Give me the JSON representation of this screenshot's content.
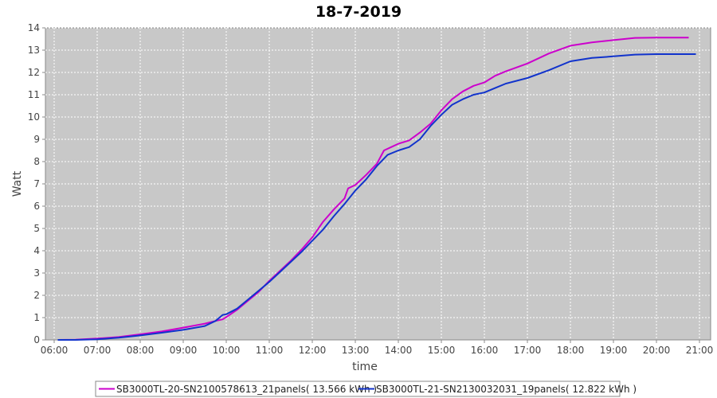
{
  "chart_data": {
    "type": "line",
    "title": "18-7-2019",
    "xlabel": "time",
    "ylabel": "Watt",
    "xlim": [
      "06:00",
      "21:00"
    ],
    "ylim": [
      0,
      14
    ],
    "x_ticks": [
      "06:00",
      "07:00",
      "08:00",
      "09:00",
      "10:00",
      "11:00",
      "12:00",
      "13:00",
      "14:00",
      "15:00",
      "16:00",
      "17:00",
      "18:00",
      "19:00",
      "20:00",
      "21:00"
    ],
    "y_ticks": [
      "0",
      "1",
      "2",
      "3",
      "4",
      "5",
      "6",
      "7",
      "8",
      "9",
      "10",
      "11",
      "12",
      "13",
      "14"
    ],
    "grid": true,
    "legend_position": "bottom",
    "series": [
      {
        "name": "SB3000TL-20-SN2100578613_21panels( 13.566 kWh )",
        "color": "#cc00cc",
        "points": [
          [
            "06:05",
            0.0
          ],
          [
            "06:30",
            0.01
          ],
          [
            "07:00",
            0.06
          ],
          [
            "07:30",
            0.13
          ],
          [
            "08:00",
            0.25
          ],
          [
            "08:30",
            0.38
          ],
          [
            "09:00",
            0.55
          ],
          [
            "09:30",
            0.73
          ],
          [
            "09:45",
            0.85
          ],
          [
            "09:55",
            0.92
          ],
          [
            "10:00",
            1.02
          ],
          [
            "10:15",
            1.35
          ],
          [
            "10:30",
            1.75
          ],
          [
            "10:45",
            2.15
          ],
          [
            "11:00",
            2.65
          ],
          [
            "11:15",
            3.1
          ],
          [
            "11:30",
            3.55
          ],
          [
            "11:45",
            4.05
          ],
          [
            "12:00",
            4.6
          ],
          [
            "12:15",
            5.3
          ],
          [
            "12:30",
            5.85
          ],
          [
            "12:45",
            6.35
          ],
          [
            "12:50",
            6.8
          ],
          [
            "13:00",
            6.95
          ],
          [
            "13:15",
            7.4
          ],
          [
            "13:30",
            7.9
          ],
          [
            "13:40",
            8.5
          ],
          [
            "13:50",
            8.65
          ],
          [
            "14:00",
            8.8
          ],
          [
            "14:15",
            8.95
          ],
          [
            "14:30",
            9.3
          ],
          [
            "14:45",
            9.7
          ],
          [
            "15:00",
            10.3
          ],
          [
            "15:15",
            10.8
          ],
          [
            "15:30",
            11.15
          ],
          [
            "15:45",
            11.4
          ],
          [
            "16:00",
            11.55
          ],
          [
            "16:15",
            11.85
          ],
          [
            "16:30",
            12.05
          ],
          [
            "17:00",
            12.4
          ],
          [
            "17:30",
            12.85
          ],
          [
            "18:00",
            13.2
          ],
          [
            "18:30",
            13.35
          ],
          [
            "19:00",
            13.45
          ],
          [
            "19:30",
            13.55
          ],
          [
            "20:00",
            13.56
          ],
          [
            "20:45",
            13.566
          ]
        ]
      },
      {
        "name": "SB3000TL-21-SN2130032031_19panels( 12.822 kWh )",
        "color": "#1133cc",
        "points": [
          [
            "06:05",
            0.0
          ],
          [
            "06:30",
            0.0
          ],
          [
            "07:00",
            0.03
          ],
          [
            "07:30",
            0.1
          ],
          [
            "08:00",
            0.2
          ],
          [
            "08:30",
            0.32
          ],
          [
            "09:00",
            0.45
          ],
          [
            "09:30",
            0.62
          ],
          [
            "09:45",
            0.85
          ],
          [
            "09:55",
            1.12
          ],
          [
            "10:00",
            1.15
          ],
          [
            "10:15",
            1.4
          ],
          [
            "10:30",
            1.8
          ],
          [
            "10:45",
            2.2
          ],
          [
            "11:00",
            2.6
          ],
          [
            "11:15",
            3.05
          ],
          [
            "11:30",
            3.5
          ],
          [
            "11:45",
            3.95
          ],
          [
            "12:00",
            4.45
          ],
          [
            "12:15",
            4.95
          ],
          [
            "12:30",
            5.55
          ],
          [
            "12:45",
            6.1
          ],
          [
            "13:00",
            6.7
          ],
          [
            "13:15",
            7.2
          ],
          [
            "13:30",
            7.8
          ],
          [
            "13:45",
            8.3
          ],
          [
            "14:00",
            8.5
          ],
          [
            "14:15",
            8.65
          ],
          [
            "14:30",
            9.0
          ],
          [
            "14:45",
            9.6
          ],
          [
            "15:00",
            10.1
          ],
          [
            "15:15",
            10.55
          ],
          [
            "15:30",
            10.8
          ],
          [
            "15:45",
            11.0
          ],
          [
            "16:00",
            11.1
          ],
          [
            "16:15",
            11.3
          ],
          [
            "16:30",
            11.5
          ],
          [
            "17:00",
            11.75
          ],
          [
            "17:30",
            12.1
          ],
          [
            "18:00",
            12.5
          ],
          [
            "18:30",
            12.65
          ],
          [
            "19:00",
            12.72
          ],
          [
            "19:30",
            12.8
          ],
          [
            "20:00",
            12.82
          ],
          [
            "20:55",
            12.822
          ]
        ]
      }
    ]
  }
}
